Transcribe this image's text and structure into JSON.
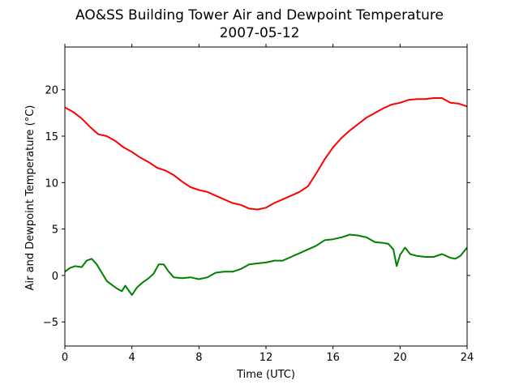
{
  "chart_data": {
    "type": "line",
    "title": "AO&SS Building Tower Air and Dewpoint Temperature",
    "subtitle": "2007-05-12",
    "xlabel": "Time (UTC)",
    "ylabel": "Air and Dewpoint Temperature (°C)",
    "xlim": [
      0,
      24
    ],
    "ylim": [
      -7.6,
      24.6
    ],
    "xticks": [
      0,
      4,
      8,
      12,
      16,
      20,
      24
    ],
    "yticks": [
      -5,
      0,
      5,
      10,
      15,
      20
    ],
    "grid": false,
    "legend": "none",
    "series": [
      {
        "color": "#ff0000",
        "x": [
          0,
          0.5,
          1,
          1.5,
          2,
          2.5,
          3,
          3.5,
          4,
          4.5,
          5,
          5.5,
          6,
          6.5,
          7,
          7.5,
          8,
          8.5,
          9,
          9.5,
          10,
          10.5,
          11,
          11.5,
          12,
          12.5,
          13,
          13.5,
          14,
          14.5,
          15,
          15.5,
          16,
          16.5,
          17,
          17.5,
          18,
          18.5,
          19,
          19.5,
          20,
          20.5,
          21,
          21.5,
          22,
          22.5,
          23,
          23.5,
          24
        ],
        "y": [
          18.1,
          17.6,
          16.9,
          16.0,
          15.2,
          15.0,
          14.5,
          13.8,
          13.3,
          12.7,
          12.2,
          11.6,
          11.3,
          10.8,
          10.1,
          9.5,
          9.2,
          9.0,
          8.6,
          8.2,
          7.8,
          7.6,
          7.2,
          7.1,
          7.3,
          7.8,
          8.2,
          8.6,
          9.0,
          9.6,
          11.0,
          12.5,
          13.8,
          14.8,
          15.6,
          16.3,
          17.0,
          17.5,
          18.0,
          18.4,
          18.6,
          18.9,
          19.0,
          19.0,
          19.1,
          19.1,
          18.6,
          18.5,
          18.2
        ]
      },
      {
        "color": "#008000",
        "x": [
          0,
          0.3,
          0.6,
          1,
          1.3,
          1.6,
          1.9,
          2.2,
          2.5,
          2.8,
          3.1,
          3.4,
          3.6,
          3.8,
          4,
          4.3,
          4.6,
          5,
          5.3,
          5.6,
          5.9,
          6.2,
          6.5,
          7,
          7.5,
          8,
          8.5,
          9,
          9.5,
          10,
          10.5,
          11,
          11.5,
          12,
          12.5,
          13,
          13.5,
          14,
          14.5,
          15,
          15.5,
          16,
          16.5,
          17,
          17.5,
          18,
          18.5,
          19,
          19.3,
          19.6,
          19.8,
          20,
          20.3,
          20.6,
          21,
          21.5,
          22,
          22.5,
          23,
          23.3,
          23.6,
          24
        ],
        "y": [
          0.4,
          0.8,
          1.0,
          0.9,
          1.6,
          1.8,
          1.2,
          0.3,
          -0.6,
          -1.0,
          -1.4,
          -1.7,
          -1.1,
          -1.6,
          -2.1,
          -1.3,
          -0.8,
          -0.3,
          0.2,
          1.2,
          1.2,
          0.4,
          -0.2,
          -0.3,
          -0.2,
          -0.4,
          -0.2,
          0.3,
          0.4,
          0.4,
          0.7,
          1.2,
          1.3,
          1.4,
          1.6,
          1.6,
          2.0,
          2.4,
          2.8,
          3.2,
          3.8,
          3.9,
          4.1,
          4.4,
          4.3,
          4.1,
          3.6,
          3.5,
          3.4,
          2.8,
          1.0,
          2.2,
          3.0,
          2.3,
          2.1,
          2.0,
          2.0,
          2.3,
          1.9,
          1.8,
          2.1,
          3.0
        ]
      }
    ]
  }
}
